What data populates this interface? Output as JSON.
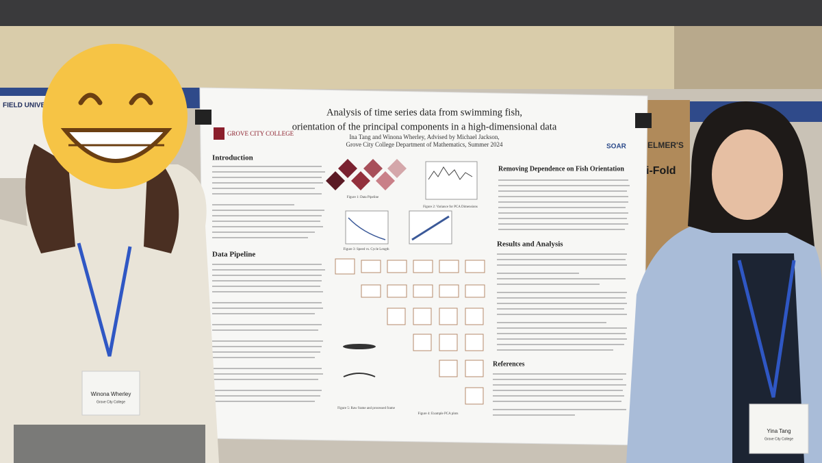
{
  "poster": {
    "title_lines": [
      "Analysis of time series data from swimming fish,",
      "orientation of the principal components in a high-dimensional data"
    ],
    "authors": "Ina Tang and Winona Wherley, Advised by Michael Jackson,",
    "affiliation": "Grove City College Department of Mathematics, Summer 2024",
    "logo_left": "GROVE CITY COLLEGE",
    "logo_right": "SOAR",
    "sections": {
      "introduction": "Introduction",
      "data_pipeline": "Data Pipeline",
      "removing_dependence": "Removing Dependence on Fish Orientation",
      "results": "Results and Analysis",
      "references": "References"
    },
    "figures": {
      "fig1": "Figure 1: Data Pipeline",
      "fig2": "Figure 2: Variance for PCA Dimensions",
      "fig3": "Figure 3: Speed vs. Cycle Length",
      "fig4": "Figure 4: Example PCA plots",
      "fig5": "Figure 5: Raw frame and processed frame"
    }
  },
  "badges": [
    {
      "name": "Winona Wherley",
      "school": "Grove City College"
    },
    {
      "name": "Yina Tang",
      "school": "Grove City College"
    }
  ],
  "background": {
    "banner": "FIELD UNIVERSITY",
    "box_brand": "ELMER'S",
    "box_product": "i-Fold"
  }
}
